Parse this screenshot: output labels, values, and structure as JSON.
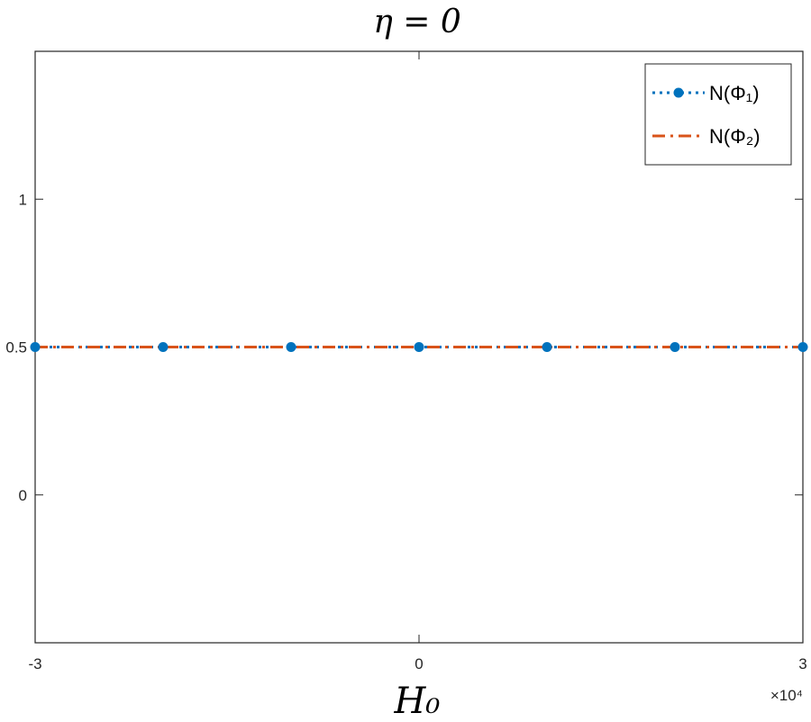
{
  "chart_data": {
    "type": "line",
    "title": "η = 0",
    "xlabel": "H₀",
    "ylabel": "",
    "x_exponent_label": "×10⁴",
    "xlim": [
      -30000,
      30000
    ],
    "ylim": [
      -0.5,
      1.5
    ],
    "x_ticks": [
      -30000,
      0,
      30000
    ],
    "x_tick_labels": [
      "-3",
      "0",
      "3"
    ],
    "y_ticks": [
      0,
      0.5,
      1
    ],
    "y_tick_labels": [
      "0",
      "0.5",
      "1"
    ],
    "grid": false,
    "legend_position": "top-right",
    "x": [
      -30000,
      -20000,
      -10000,
      0,
      10000,
      20000,
      30000
    ],
    "series": [
      {
        "name": "N(Φ₁)",
        "values": [
          0.5,
          0.5,
          0.5,
          0.5,
          0.5,
          0.5,
          0.5
        ],
        "color": "#0072BD",
        "line_style": "dotted",
        "marker": "circle"
      },
      {
        "name": "N(Φ₂)",
        "values": [
          0.5,
          0.5,
          0.5,
          0.5,
          0.5,
          0.5,
          0.5
        ],
        "color": "#D95319",
        "line_style": "dash-dot",
        "marker": "none"
      }
    ]
  }
}
